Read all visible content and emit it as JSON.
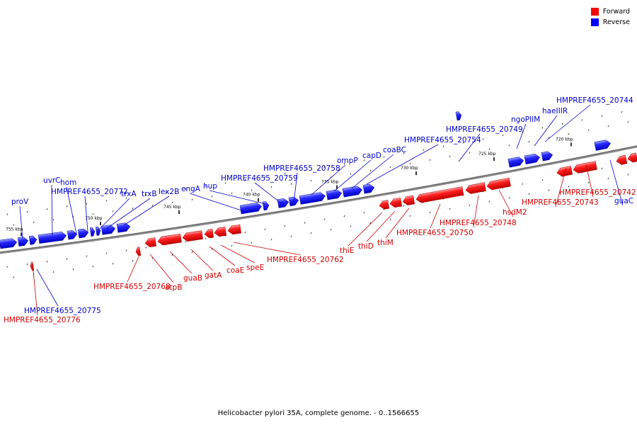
{
  "legend": [
    {
      "label": "Forward",
      "color": "#ff0000"
    },
    {
      "label": "Reverse",
      "color": "#0000ff"
    }
  ],
  "caption": "Helicobacter pylori 35A, complete genome. - 0..1566655",
  "tick_labels": [
    "755 kbp",
    "750 kbp",
    "745 kbp",
    "740 kbp",
    "735 kbp",
    "730 kbp",
    "725 kbp",
    "720 kbp"
  ],
  "gene_labels": [
    "proV",
    "uvrC",
    "hom",
    "HMPREF4655_20772",
    "trxA",
    "trxB",
    "lex2B",
    "engA",
    "hup",
    "HMPREF4655_20759",
    "HMPREF4655_20758",
    "ompP",
    "capD",
    "coaBC",
    "HMPREF4655_20754",
    "HMPREF4655_20749",
    "ngoPIIM",
    "haeIIIR",
    "HMPREF4655_20744",
    "HMPREF4655_20775",
    "HMPREF4655_20776",
    "HMPREF4655_20768",
    "atpB",
    "guaB",
    "gatA",
    "coaE",
    "speE",
    "HMPREF4655_20762",
    "thiE",
    "thiD",
    "thiM",
    "HMPREF4655_20750",
    "HMPREF4655_20748",
    "hsdM2",
    "HMPREF4655_20743",
    "HMPREF4655_20742",
    "guaC"
  ],
  "colors": {
    "forward": "#ff0000",
    "reverse": "#0000ff",
    "backbone": "#808080"
  }
}
